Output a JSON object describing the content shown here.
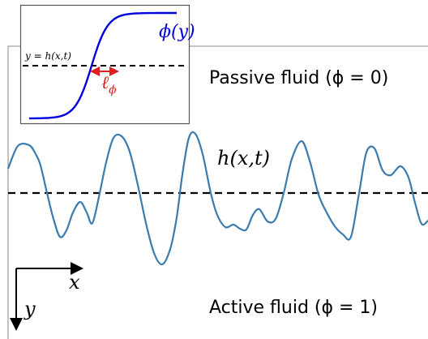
{
  "main_panel": {
    "interface_label": "h(x,t)",
    "top_region_label": "Passive fluid (ϕ = 0)",
    "bottom_region_label": "Active fluid (ϕ = 1)",
    "axis_x_label": "x",
    "axis_y_label": "y"
  },
  "inset": {
    "profile_label": "ϕ(y)",
    "interface_eq_label": "y = h(x,t)",
    "width_label": "ℓ",
    "width_subscript": "ϕ"
  },
  "colors": {
    "interface_curve": "#3a7bb0",
    "profile_curve": "#0000e0",
    "width_marker": "#e02020",
    "text": "#000000"
  }
}
